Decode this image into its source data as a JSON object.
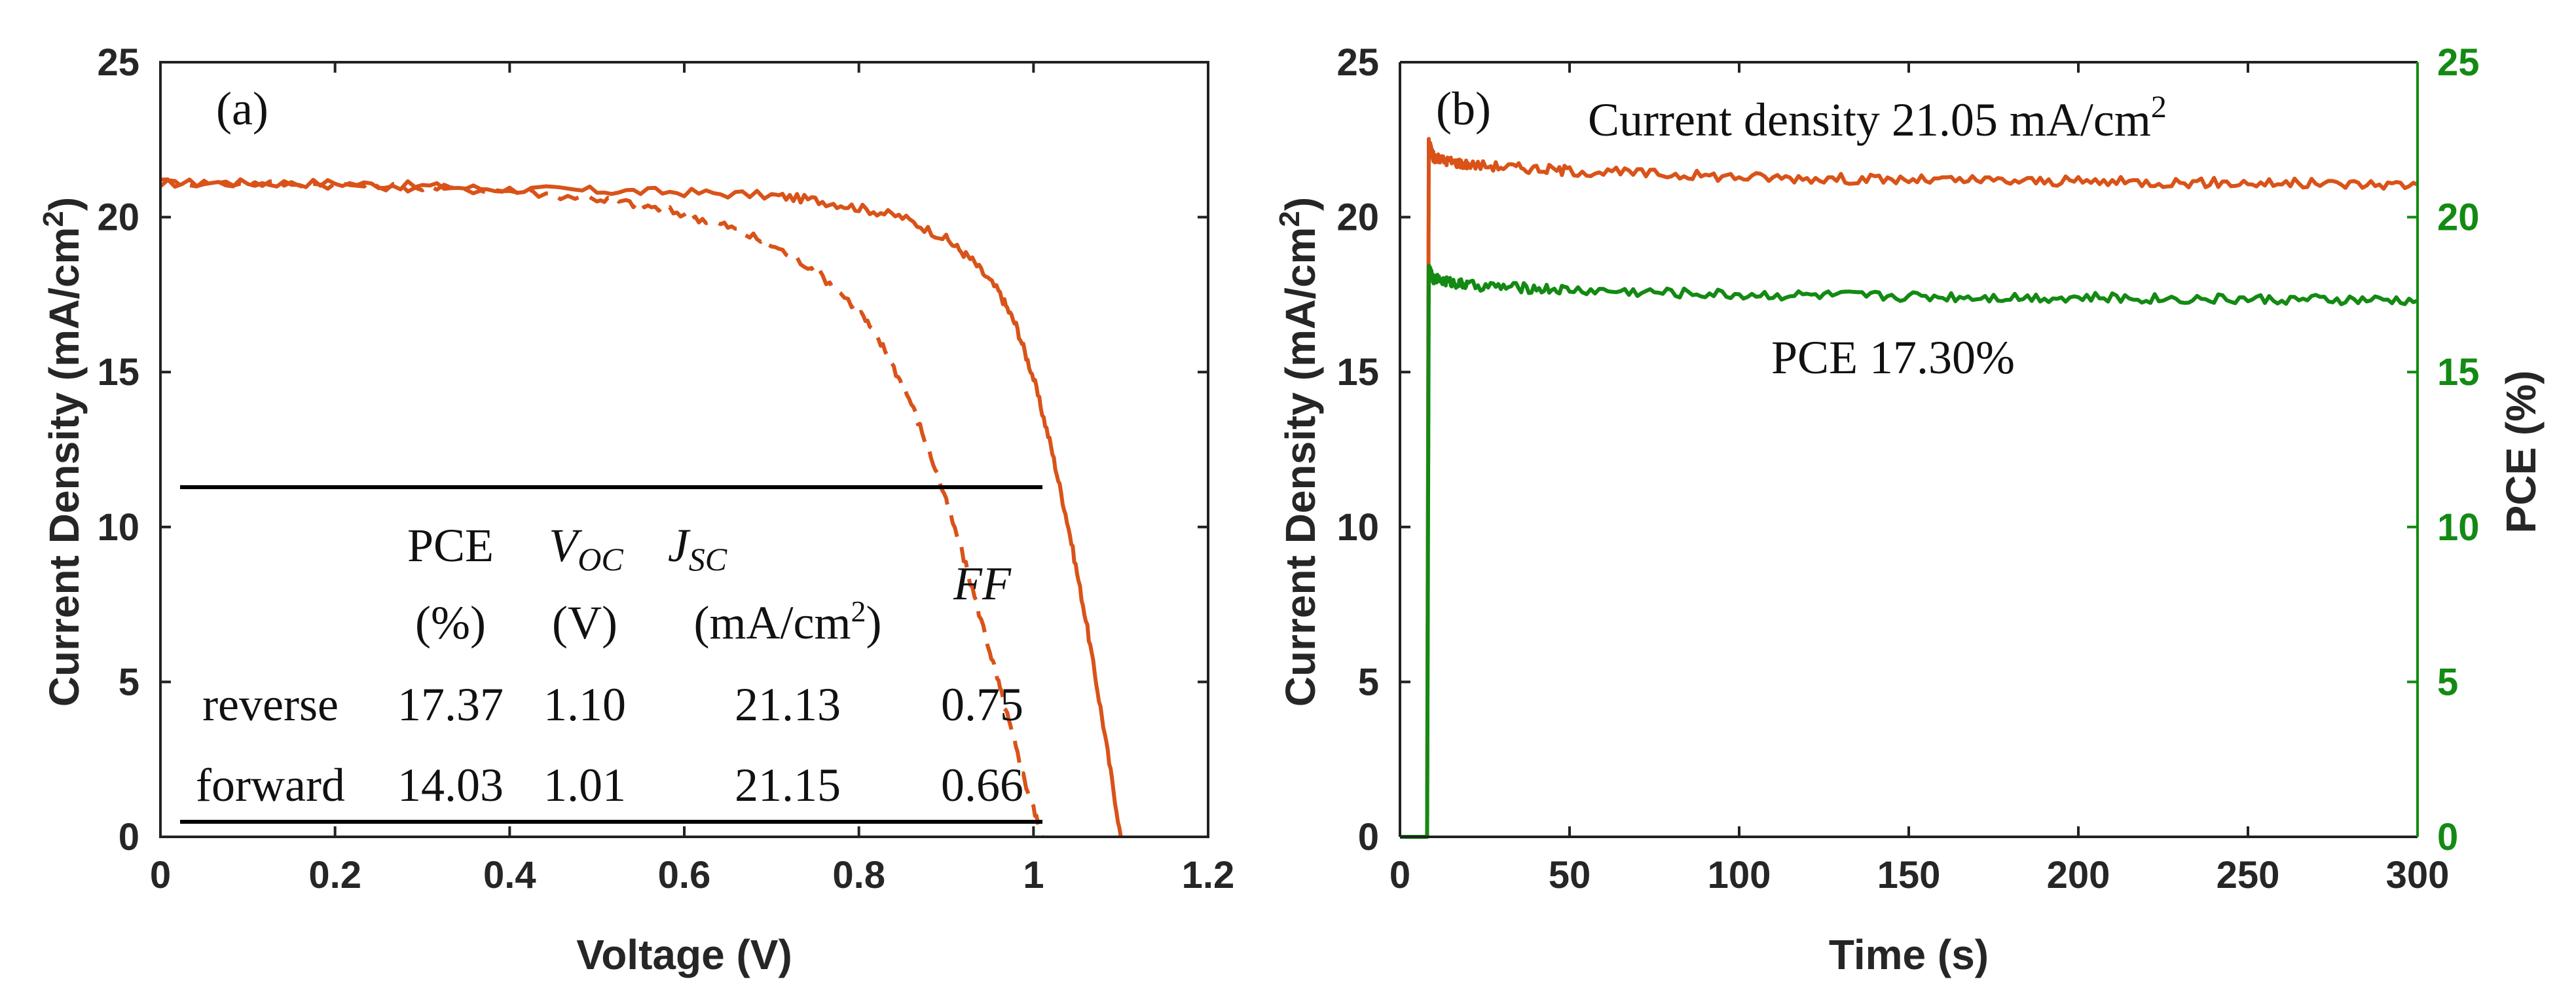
{
  "colors": {
    "orange": "#D95319",
    "green": "#138A13",
    "axis": "#262626"
  },
  "chart_data": [
    {
      "type": "line",
      "panel_label": "(a)",
      "xlabel": "Voltage (V)",
      "ylabel_main": "Current Density (mA/cm",
      "ylabel_sup": "2",
      "ylabel_close": ")",
      "xlim": [
        0,
        1.2
      ],
      "ylim": [
        0,
        25
      ],
      "xticks": [
        "0",
        "0.2",
        "0.4",
        "0.6",
        "0.8",
        "1",
        "1.2"
      ],
      "yticks": [
        "0",
        "5",
        "10",
        "15",
        "20",
        "25"
      ],
      "series": [
        {
          "name": "reverse",
          "style": "solid",
          "x": [
            0,
            0.1,
            0.2,
            0.3,
            0.4,
            0.5,
            0.6,
            0.7,
            0.75,
            0.8,
            0.85,
            0.9,
            0.93,
            0.96,
            0.98,
            1.0,
            1.02,
            1.04,
            1.06,
            1.08,
            1.1
          ],
          "y": [
            21.1,
            21.1,
            21.1,
            21.0,
            20.9,
            20.85,
            20.8,
            20.7,
            20.55,
            20.3,
            20.0,
            19.3,
            18.6,
            17.6,
            16.5,
            14.8,
            12.6,
            10.0,
            7.0,
            3.6,
            0
          ]
        },
        {
          "name": "forward",
          "style": "dashed",
          "x": [
            0,
            0.1,
            0.2,
            0.3,
            0.4,
            0.5,
            0.55,
            0.6,
            0.65,
            0.7,
            0.75,
            0.8,
            0.83,
            0.86,
            0.89,
            0.92,
            0.95,
            0.97,
            0.99,
            1.01
          ],
          "y": [
            21.1,
            21.1,
            21.05,
            20.95,
            20.85,
            20.6,
            20.4,
            20.1,
            19.7,
            19.1,
            18.3,
            17.0,
            15.7,
            14.0,
            11.7,
            9.0,
            6.0,
            3.9,
            1.8,
            0
          ]
        }
      ],
      "table": {
        "headers": {
          "pce": "PCE",
          "pce_unit": "(%)",
          "voc_main": "V",
          "voc_sub": "OC",
          "voc_unit": "(V)",
          "jsc_main": "J",
          "jsc_sub": "SC",
          "jsc_unit_main": "(mA/cm",
          "jsc_unit_sup": "2",
          "jsc_unit_close": ")",
          "ff": "FF"
        },
        "rows": [
          {
            "scan": "reverse",
            "pce": "17.37",
            "voc": "1.10",
            "jsc": "21.13",
            "ff": "0.75"
          },
          {
            "scan": "forward",
            "pce": "14.03",
            "voc": "1.01",
            "jsc": "21.15",
            "ff": "0.66"
          }
        ]
      }
    },
    {
      "type": "line",
      "panel_label": "(b)",
      "xlabel": "Time (s)",
      "ylabel_main": "Current Density (mA/cm",
      "ylabel_sup": "2",
      "ylabel_close": ")",
      "ylabel_right": "PCE (%)",
      "xlim": [
        0,
        300
      ],
      "ylim": [
        0,
        25
      ],
      "ylim_right": [
        0,
        25
      ],
      "xticks": [
        "0",
        "50",
        "100",
        "150",
        "200",
        "250",
        "300"
      ],
      "yticks": [
        "0",
        "5",
        "10",
        "15",
        "20",
        "25"
      ],
      "yticks_right": [
        "0",
        "5",
        "10",
        "15",
        "20",
        "25"
      ],
      "annotation_current_main": "Current density 21.05 mA/cm",
      "annotation_current_sup": "2",
      "annotation_pce": "PCE  17.30%",
      "series": [
        {
          "name": "Current density",
          "axis": "left",
          "x": [
            0,
            8,
            8.5,
            10,
            20,
            50,
            100,
            150,
            200,
            250,
            300
          ],
          "y": [
            0,
            0,
            22.4,
            21.9,
            21.7,
            21.5,
            21.3,
            21.2,
            21.15,
            21.1,
            21.05
          ]
        },
        {
          "name": "PCE",
          "axis": "right",
          "x": [
            0,
            8,
            8.5,
            10,
            20,
            50,
            100,
            150,
            200,
            250,
            300
          ],
          "y": [
            0,
            0,
            18.3,
            18.0,
            17.8,
            17.65,
            17.5,
            17.45,
            17.4,
            17.35,
            17.3
          ]
        }
      ]
    }
  ]
}
